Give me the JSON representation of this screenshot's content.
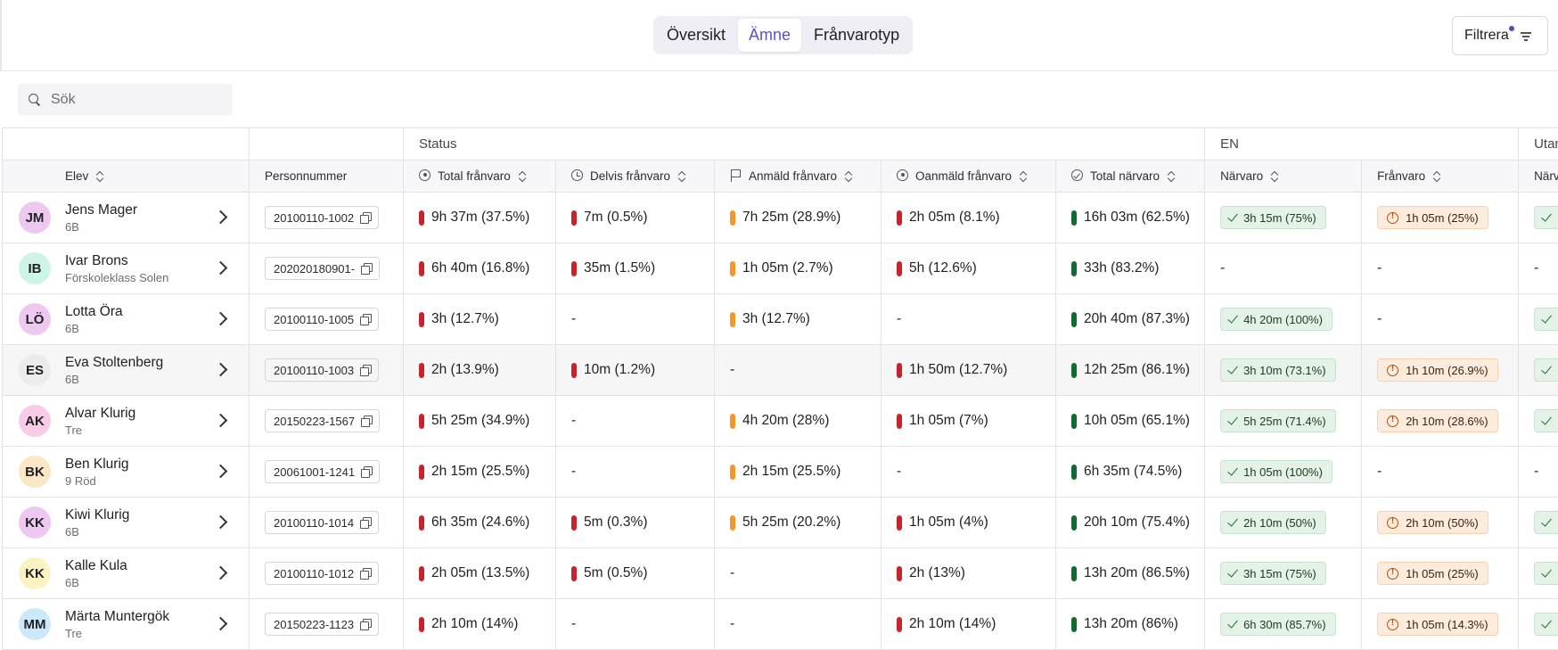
{
  "tabs": [
    {
      "label": "Översikt",
      "active": false
    },
    {
      "label": "Ämne",
      "active": true
    },
    {
      "label": "Frånvarotyp",
      "active": false
    }
  ],
  "filter": {
    "label": "Filtrera"
  },
  "search": {
    "placeholder": "Sök"
  },
  "groups": {
    "status": "Status",
    "en": "EN",
    "utan": "Utan"
  },
  "columns": {
    "elev": "Elev",
    "personnummer": "Personnummer",
    "total_franvaro": "Total frånvaro",
    "delvis_franvaro": "Delvis frånvaro",
    "anmald_franvaro": "Anmäld frånvaro",
    "oanmald_franvaro": "Oanmäld frånvaro",
    "total_narvaro": "Total närvaro",
    "narvaro": "Närvaro",
    "franvaro": "Frånvaro",
    "narv_cut": "Närv"
  },
  "colors": {
    "red": "#c8222b",
    "orange": "#f5962b",
    "green": "#0f6b2f",
    "accent": "#5a52c9"
  },
  "rows": [
    {
      "initials": "JM",
      "avatar_color": "#edc9f2",
      "name": "Jens Mager",
      "class": "6B",
      "pnr": "20100110-1002",
      "total": "9h 37m (37.5%)",
      "delvis": "7m (0.5%)",
      "anmald": "7h 25m (28.9%)",
      "oanmald": "2h 05m (8.1%)",
      "narvaro_total": "16h 03m (62.5%)",
      "en_narvaro": "3h 15m (75%)",
      "en_franvaro": "1h 05m (25%)",
      "utan": "check"
    },
    {
      "initials": "IB",
      "avatar_color": "#cdf5e6",
      "name": "Ivar Brons",
      "class": "Förskoleklass Solen",
      "pnr": "202020180901-",
      "total": "6h 40m (16.8%)",
      "delvis": "35m (1.5%)",
      "anmald": "1h 05m (2.7%)",
      "oanmald": "5h (12.6%)",
      "narvaro_total": "33h (83.2%)",
      "en_narvaro": "-",
      "en_franvaro": "-",
      "utan": "-"
    },
    {
      "initials": "LÖ",
      "avatar_color": "#edc9f2",
      "name": "Lotta Öra",
      "class": "6B",
      "pnr": "20100110-1005",
      "total": "3h (12.7%)",
      "delvis": "-",
      "anmald": "3h (12.7%)",
      "oanmald": "-",
      "narvaro_total": "20h 40m (87.3%)",
      "en_narvaro": "4h 20m (100%)",
      "en_franvaro": "-",
      "utan": "check"
    },
    {
      "initials": "ES",
      "avatar_color": "#ececec",
      "name": "Eva Stoltenberg",
      "class": "6B",
      "pnr": "20100110-1003",
      "total": "2h (13.9%)",
      "delvis": "10m (1.2%)",
      "anmald": "-",
      "oanmald": "1h 50m (12.7%)",
      "narvaro_total": "12h 25m (86.1%)",
      "en_narvaro": "3h 10m (73.1%)",
      "en_franvaro": "1h 10m (26.9%)",
      "utan": "check"
    },
    {
      "initials": "AK",
      "avatar_color": "#f8cbe6",
      "name": "Alvar Klurig",
      "class": "Tre",
      "pnr": "20150223-1567",
      "total": "5h 25m (34.9%)",
      "delvis": "-",
      "anmald": "4h 20m (28%)",
      "oanmald": "1h 05m (7%)",
      "narvaro_total": "10h 05m (65.1%)",
      "en_narvaro": "5h 25m (71.4%)",
      "en_franvaro": "2h 10m (28.6%)",
      "utan": "check"
    },
    {
      "initials": "BK",
      "avatar_color": "#fbe7c6",
      "name": "Ben Klurig",
      "class": "9 Röd",
      "pnr": "20061001-1241",
      "total": "2h 15m (25.5%)",
      "delvis": "-",
      "anmald": "2h 15m (25.5%)",
      "oanmald": "-",
      "narvaro_total": "6h 35m (74.5%)",
      "en_narvaro": "1h 05m (100%)",
      "en_franvaro": "-",
      "utan": "-"
    },
    {
      "initials": "KK",
      "avatar_color": "#edc9f2",
      "name": "Kiwi Klurig",
      "class": "6B",
      "pnr": "20100110-1014",
      "total": "6h 35m (24.6%)",
      "delvis": "5m (0.3%)",
      "anmald": "5h 25m (20.2%)",
      "oanmald": "1h 05m (4%)",
      "narvaro_total": "20h 10m (75.4%)",
      "en_narvaro": "2h 10m (50%)",
      "en_franvaro": "2h 10m (50%)",
      "utan": "check"
    },
    {
      "initials": "KK",
      "avatar_color": "#fbf3c2",
      "name": "Kalle Kula",
      "class": "6B",
      "pnr": "20100110-1012",
      "total": "2h 05m (13.5%)",
      "delvis": "5m (0.5%)",
      "anmald": "-",
      "oanmald": "2h (13%)",
      "narvaro_total": "13h 20m (86.5%)",
      "en_narvaro": "3h 15m (75%)",
      "en_franvaro": "1h 05m (25%)",
      "utan": "check"
    },
    {
      "initials": "MM",
      "avatar_color": "#cbe9fb",
      "name": "Märta Muntergök",
      "class": "Tre",
      "pnr": "20150223-1123",
      "total": "2h 10m (14%)",
      "delvis": "-",
      "anmald": "-",
      "oanmald": "2h 10m (14%)",
      "narvaro_total": "13h 20m (86%)",
      "en_narvaro": "6h 30m (85.7%)",
      "en_franvaro": "1h 05m (14.3%)",
      "utan": "check"
    }
  ]
}
